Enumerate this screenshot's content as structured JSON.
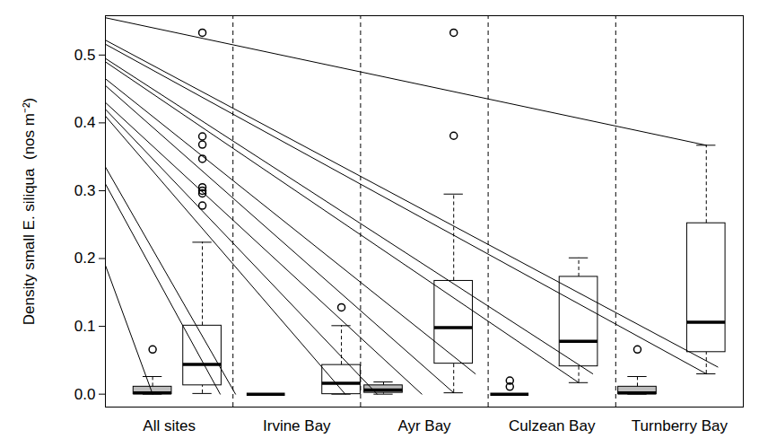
{
  "chart_data": {
    "type": "boxplot",
    "y_label": "Density small E. siliqua  (nos m⁻²)",
    "xlim": [
      0.5,
      5.5
    ],
    "xticks": [
      {
        "value": 1,
        "label": "All sites"
      },
      {
        "value": 2,
        "label": "Irvine Bay"
      },
      {
        "value": 3,
        "label": "Ayr Bay"
      },
      {
        "value": 4,
        "label": "Culzean Bay"
      },
      {
        "value": 5,
        "label": "Turnberry Bay"
      }
    ],
    "ylim": [
      -0.019,
      0.558
    ],
    "yticks": [
      {
        "value": 0,
        "label": "0.0"
      },
      0.1,
      0.2,
      0.3,
      0.4,
      0.5
    ],
    "boxes": [
      {
        "category": "All sites",
        "x": 0.87,
        "color": "#bebebe",
        "min": 0,
        "q1": 0,
        "median": 0.002,
        "q3": 0.011,
        "max": 0.026,
        "outliers": [
          0.066
        ]
      },
      {
        "category": "All sites",
        "x": 1.26,
        "color": "#ffffff",
        "min": 0.001,
        "q1": 0.013,
        "median": 0.044,
        "q3": 0.101,
        "max": 0.224,
        "outliers": [
          0.278,
          0.296,
          0.3,
          0.305,
          0.347,
          0.368,
          0.38,
          0.533
        ]
      },
      {
        "category": "Irvine Bay",
        "x": 1.76,
        "color": "#bebebe",
        "min": 0,
        "q1": 0,
        "median": 0,
        "q3": 0,
        "max": 0,
        "outliers": []
      },
      {
        "category": "Irvine Bay",
        "x": 2.35,
        "color": "#ffffff",
        "min": 0,
        "q1": 0,
        "median": 0.016,
        "q3": 0.043,
        "max": 0.101,
        "outliers": [
          0.128
        ]
      },
      {
        "category": "Ayr Bay",
        "x": 2.68,
        "color": "#bebebe",
        "min": 0,
        "q1": 0.002,
        "median": 0.006,
        "q3": 0.013,
        "max": 0.018,
        "outliers": []
      },
      {
        "category": "Ayr Bay",
        "x": 3.23,
        "color": "#ffffff",
        "min": 0.002,
        "q1": 0.045,
        "median": 0.098,
        "q3": 0.167,
        "max": 0.295,
        "outliers": [
          0.381,
          0.533
        ]
      },
      {
        "category": "Culzean Bay",
        "x": 3.67,
        "color": "#bebebe",
        "min": 0,
        "q1": 0,
        "median": 0,
        "q3": 0,
        "max": 0,
        "outliers": [
          0.011,
          0.02
        ]
      },
      {
        "category": "Culzean Bay",
        "x": 4.21,
        "color": "#ffffff",
        "min": 0.017,
        "q1": 0.041,
        "median": 0.078,
        "q3": 0.173,
        "max": 0.201,
        "outliers": []
      },
      {
        "category": "Turnberry Bay",
        "x": 4.67,
        "color": "#bebebe",
        "min": 0,
        "q1": 0,
        "median": 0.002,
        "q3": 0.011,
        "max": 0.026,
        "outliers": [
          0.066
        ]
      },
      {
        "category": "Turnberry Bay",
        "x": 5.21,
        "color": "#ffffff",
        "min": 0.03,
        "q1": 0.062,
        "median": 0.106,
        "q3": 0.252,
        "max": 0.367,
        "outliers": []
      }
    ],
    "lines": [
      {
        "x": [
          0.5,
          5.21
        ],
        "y": [
          0.555,
          0.367
        ]
      },
      {
        "x": [
          0.5,
          5.3
        ],
        "y": [
          0.522,
          0.04
        ]
      },
      {
        "x": [
          0.5,
          5.21
        ],
        "y": [
          0.516,
          0.03
        ]
      },
      {
        "x": [
          0.5,
          4.32
        ],
        "y": [
          0.495,
          0.03
        ]
      },
      {
        "x": [
          0.5,
          4.21
        ],
        "y": [
          0.49,
          0.017
        ]
      },
      {
        "x": [
          0.5,
          3.4
        ],
        "y": [
          0.465,
          0.03
        ]
      },
      {
        "x": [
          0.5,
          3.23
        ],
        "y": [
          0.455,
          0.002
        ]
      },
      {
        "x": [
          0.5,
          2.98
        ],
        "y": [
          0.43,
          0
        ]
      },
      {
        "x": [
          0.5,
          2.63
        ],
        "y": [
          0.42,
          0
        ]
      },
      {
        "x": [
          0.5,
          2.38
        ],
        "y": [
          0.41,
          0
        ]
      },
      {
        "x": [
          0.5,
          1.52
        ],
        "y": [
          0.335,
          0
        ]
      },
      {
        "x": [
          0.5,
          1.4
        ],
        "y": [
          0.31,
          0
        ]
      },
      {
        "x": [
          0.5,
          0.87
        ],
        "y": [
          0.19,
          0
        ]
      }
    ]
  }
}
